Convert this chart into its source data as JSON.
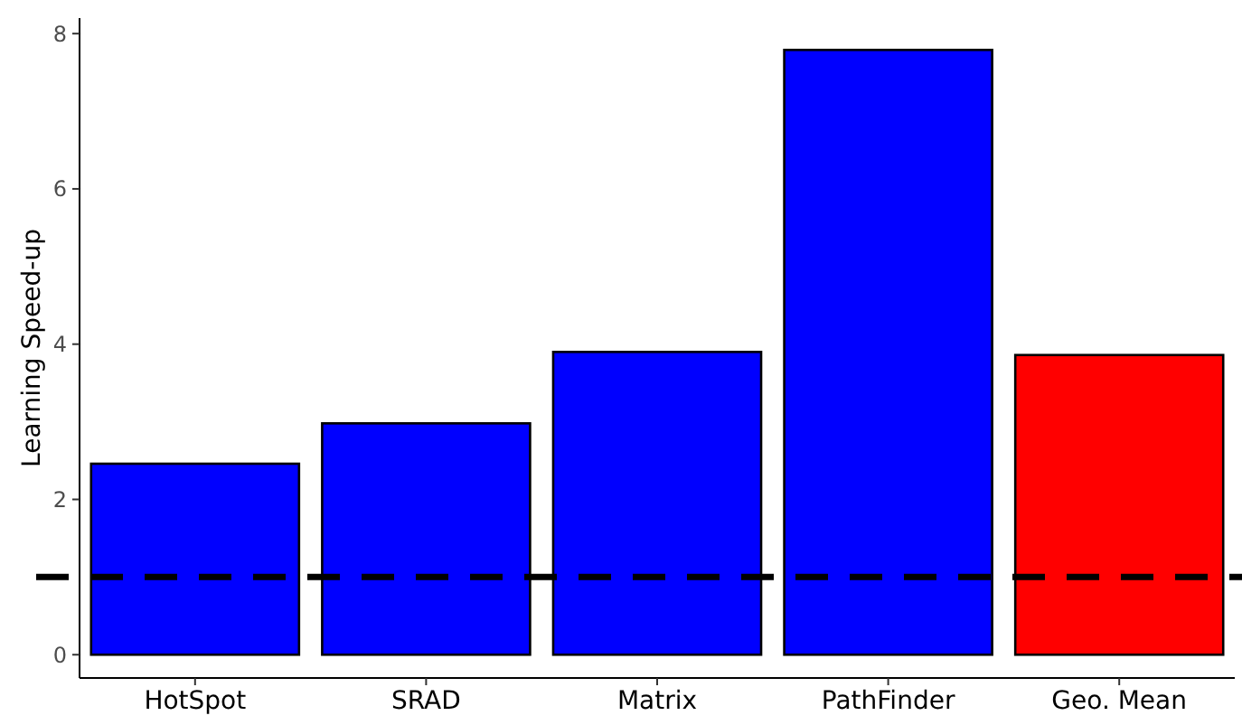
{
  "chart_data": {
    "type": "bar",
    "ylabel": "Learning Speed-up",
    "categories": [
      "HotSpot",
      "SRAD",
      "Matrix",
      "PathFinder",
      "Geo. Mean"
    ],
    "values": [
      2.46,
      2.98,
      3.9,
      7.79,
      3.86
    ],
    "colors": [
      "#0000ff",
      "#0000ff",
      "#0000ff",
      "#0000ff",
      "#ff0000"
    ],
    "ylim": [
      -0.3,
      8.2
    ],
    "yticks": [
      0,
      2,
      4,
      6,
      8
    ],
    "grid": false,
    "ref_lines": [
      {
        "axis": "y",
        "value": 1,
        "color": "#000000",
        "line_style": "dashed"
      }
    ]
  }
}
